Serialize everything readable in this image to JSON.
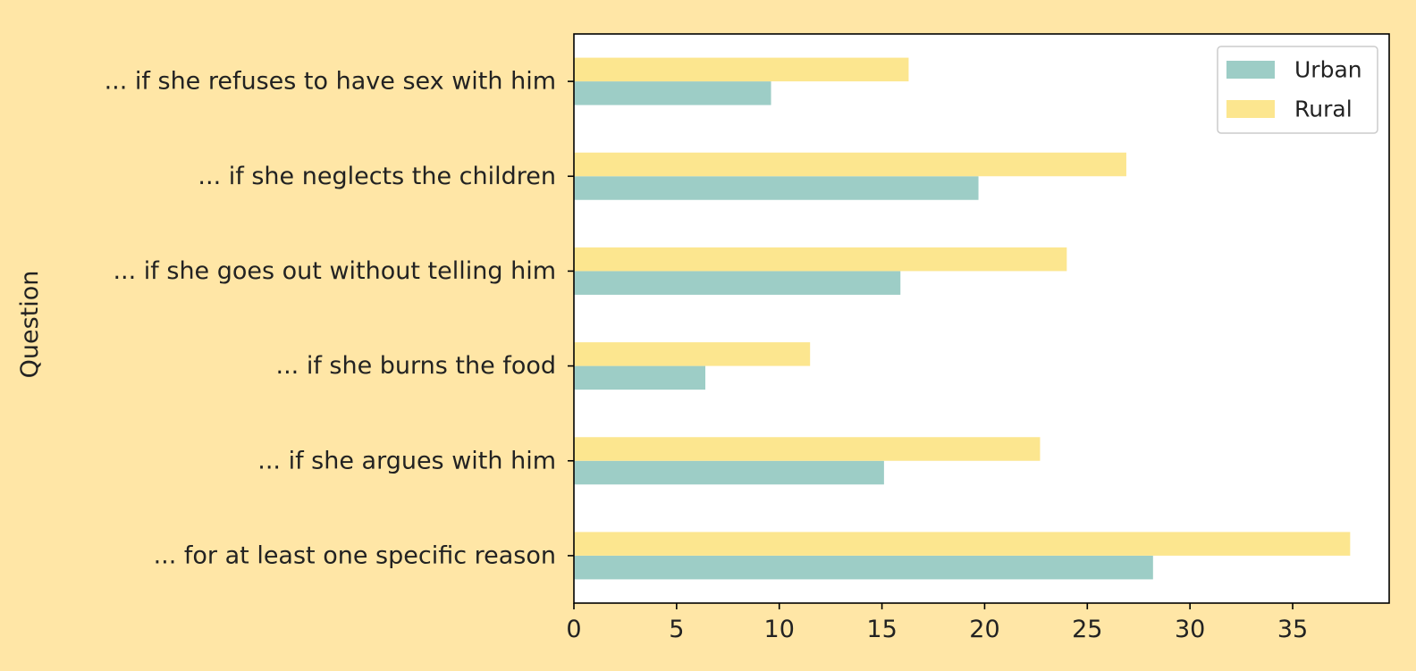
{
  "chart_data": {
    "type": "bar",
    "orientation": "horizontal",
    "categories": [
      "... if she refuses to have sex with him",
      "... if she neglects the children",
      "... if she goes out without telling him",
      "... if she burns the food",
      "... if she argues with him",
      "... for at least one specific reason"
    ],
    "series": [
      {
        "name": "Urban",
        "values": [
          9.6,
          19.7,
          15.9,
          6.4,
          15.1,
          28.2
        ],
        "color": "#9DCDC6"
      },
      {
        "name": "Rural",
        "values": [
          16.3,
          26.9,
          24.0,
          11.5,
          22.7,
          37.8
        ],
        "color": "#FCE68F"
      }
    ],
    "title": "",
    "xlabel": "",
    "ylabel": "Question",
    "xlim": [
      0,
      39.7
    ],
    "xticks": [
      0,
      5,
      10,
      15,
      20,
      25,
      30,
      35
    ],
    "grid": false,
    "legend_position": "top-right",
    "page_background": "#FFE6A6",
    "plot_background": "#FFFFFF"
  }
}
